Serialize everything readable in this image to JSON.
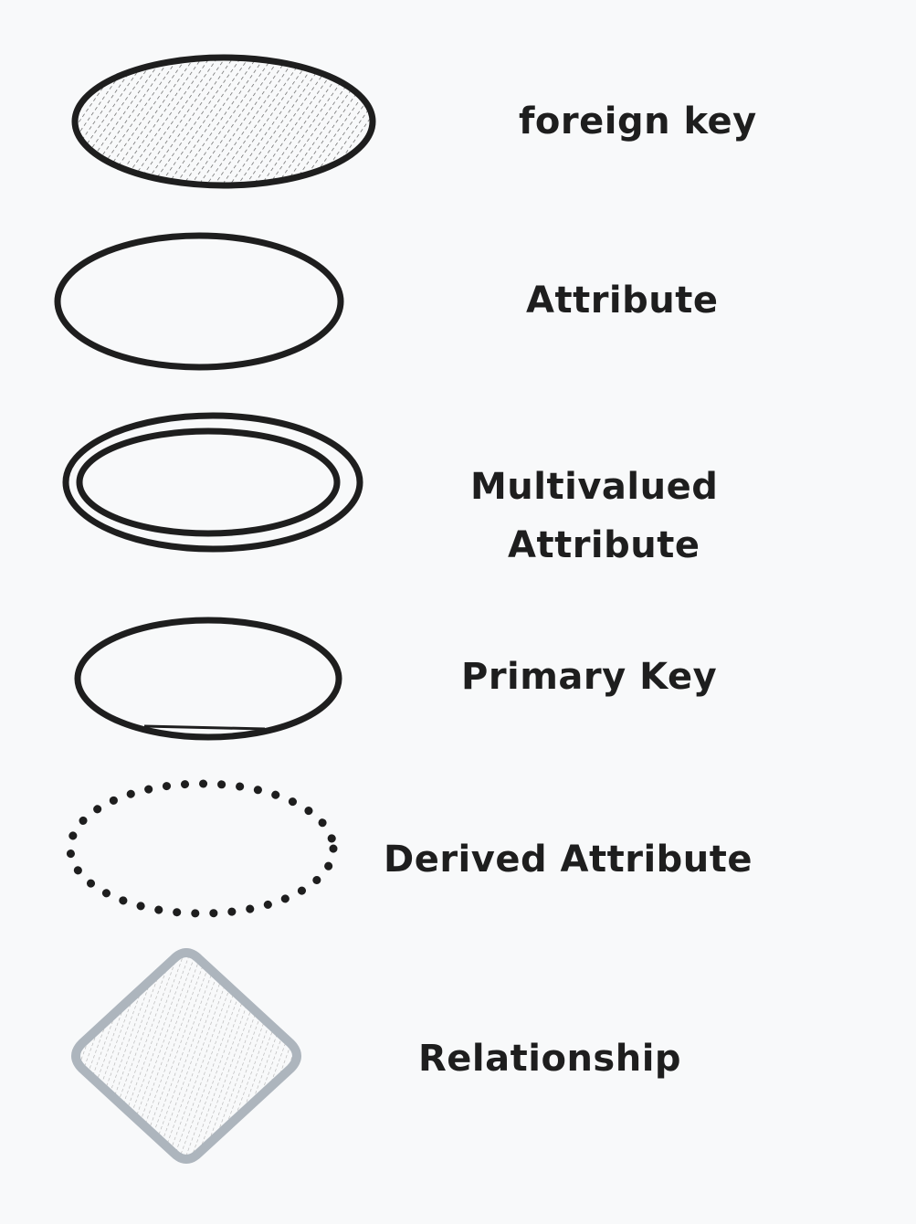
{
  "colors": {
    "background": "#f8f9fa",
    "stroke": "#1e1e1e",
    "relationship_stroke": "#adb5bd",
    "hatch": "#555555",
    "relationship_hatch": "#b5b5b5"
  },
  "legend": {
    "foreign_key": {
      "label": "foreign key",
      "shape": "hatched-ellipse"
    },
    "attribute": {
      "label": "Attribute",
      "shape": "ellipse"
    },
    "multivalued": {
      "label_line1": "Multivalued",
      "label_line2": "Attribute",
      "shape": "double-ellipse"
    },
    "primary_key": {
      "label": "Primary Key",
      "shape": "ellipse-underlined"
    },
    "derived": {
      "label": "Derived Attribute",
      "shape": "dotted-ellipse"
    },
    "relationship": {
      "label": "Relationship",
      "shape": "hatched-diamond"
    }
  }
}
